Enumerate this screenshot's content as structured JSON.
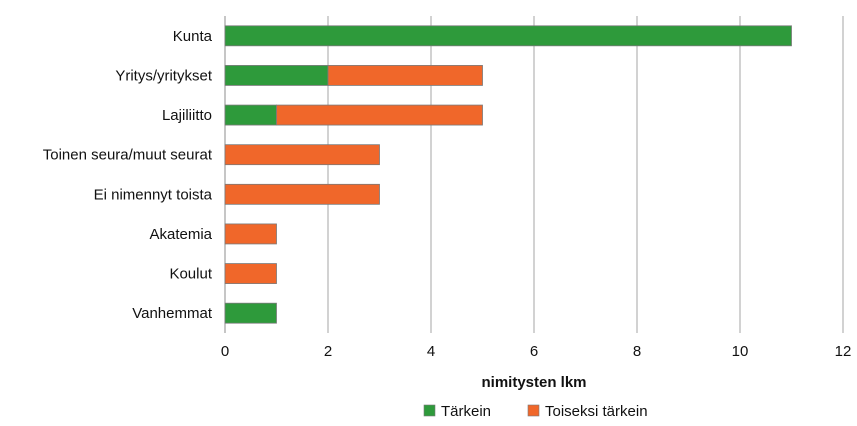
{
  "chart_data": {
    "type": "bar",
    "orientation": "horizontal",
    "stacked": true,
    "categories": [
      "Kunta",
      "Yritys/yritykset",
      "Lajiliitto",
      "Toinen seura/muut seurat",
      "Ei nimennyt toista",
      "Akatemia",
      "Koulut",
      "Vanhemmat"
    ],
    "series": [
      {
        "name": "Tärkein",
        "color": "#2e9a3b",
        "values": [
          11,
          2,
          1,
          0,
          0,
          0,
          0,
          1
        ]
      },
      {
        "name": "Toiseksi tärkein",
        "color": "#f0672a",
        "values": [
          0,
          3,
          4,
          3,
          3,
          1,
          1,
          0
        ]
      }
    ],
    "xlabel": "nimitysten lkm",
    "ylabel": "",
    "xlim": [
      0,
      12
    ],
    "xticks": [
      "0",
      "2",
      "4",
      "6",
      "8",
      "10",
      "12"
    ],
    "grid": true,
    "legend_position": "bottom"
  }
}
